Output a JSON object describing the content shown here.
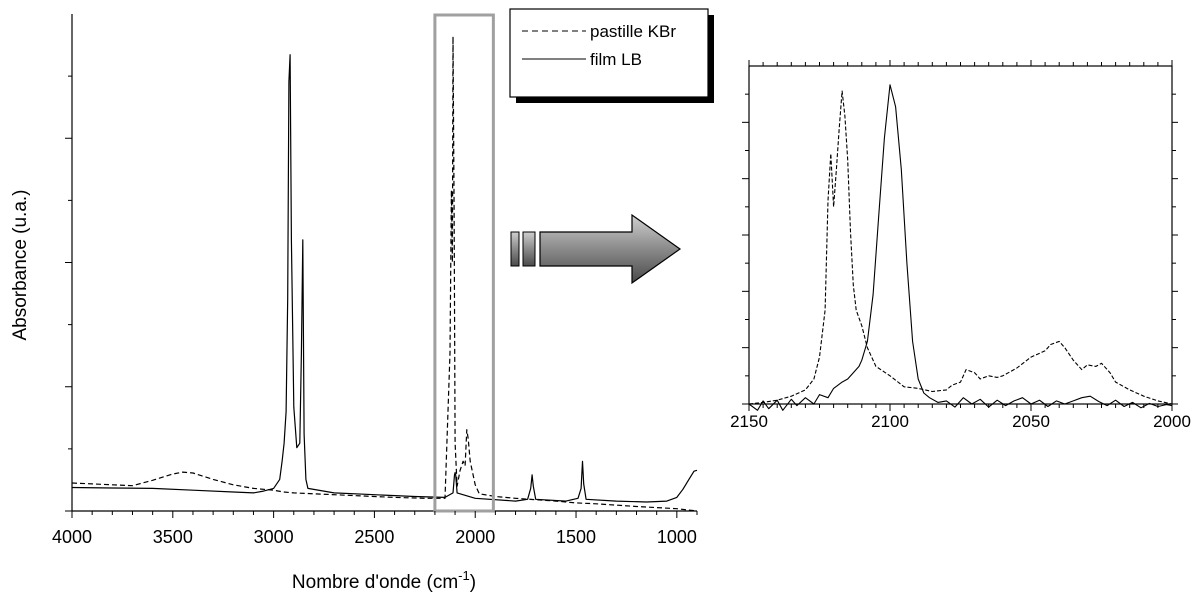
{
  "chart_data": [
    {
      "type": "line",
      "xlabel": "Nombre d'onde (cm",
      "xlabel_sup": "-1",
      "xlabel_end": ")",
      "ylabel": "Absorbance (u.a.)",
      "xlim": [
        4000,
        900
      ],
      "x_reversed": true,
      "ylim": [
        -0.05,
        1.05
      ],
      "x_ticks": [
        4000,
        3500,
        3000,
        2500,
        2000,
        1500,
        1000
      ],
      "y_tick_labels": false,
      "highlight_box": {
        "x_range": [
          2200,
          1910
        ],
        "color": "#a0a0a0"
      },
      "legend": {
        "placement": "top-right",
        "entries": [
          {
            "label": "pastille KBr",
            "style": "dashed"
          },
          {
            "label": "film LB",
            "style": "solid"
          }
        ]
      },
      "series": [
        {
          "name": "pastille KBr",
          "style": "dashed",
          "points": [
            [
              4000,
              0.012
            ],
            [
              3900,
              0.01
            ],
            [
              3800,
              0.008
            ],
            [
              3700,
              0.006
            ],
            [
              3600,
              0.018
            ],
            [
              3500,
              0.032
            ],
            [
              3450,
              0.036
            ],
            [
              3400,
              0.034
            ],
            [
              3300,
              0.02
            ],
            [
              3200,
              0.008
            ],
            [
              3100,
              0.0
            ],
            [
              3000,
              -0.004
            ],
            [
              2950,
              -0.008
            ],
            [
              2900,
              -0.01
            ],
            [
              2800,
              -0.012
            ],
            [
              2600,
              -0.016
            ],
            [
              2400,
              -0.02
            ],
            [
              2250,
              -0.022
            ],
            [
              2150,
              -0.022
            ],
            [
              2125,
              0.3
            ],
            [
              2118,
              0.66
            ],
            [
              2113,
              0.5
            ],
            [
              2110,
              1.0
            ],
            [
              2105,
              0.62
            ],
            [
              2100,
              0.1
            ],
            [
              2090,
              0.005
            ],
            [
              2075,
              0.04
            ],
            [
              2060,
              0.06
            ],
            [
              2050,
              0.05
            ],
            [
              2042,
              0.13
            ],
            [
              2035,
              0.11
            ],
            [
              2025,
              0.06
            ],
            [
              2000,
              0.008
            ],
            [
              1980,
              -0.012
            ],
            [
              1900,
              -0.018
            ],
            [
              1800,
              -0.022
            ],
            [
              1600,
              -0.028
            ],
            [
              1500,
              -0.032
            ],
            [
              1400,
              -0.034
            ],
            [
              1200,
              -0.04
            ],
            [
              1000,
              -0.045
            ],
            [
              900,
              -0.05
            ]
          ]
        },
        {
          "name": "film LB",
          "style": "solid",
          "points": [
            [
              4000,
              0.002
            ],
            [
              3800,
              0.001
            ],
            [
              3600,
              0.0
            ],
            [
              3400,
              -0.004
            ],
            [
              3200,
              -0.008
            ],
            [
              3100,
              -0.01
            ],
            [
              3050,
              -0.006
            ],
            [
              3000,
              0.0
            ],
            [
              2970,
              0.02
            ],
            [
              2958,
              0.06
            ],
            [
              2948,
              0.1
            ],
            [
              2938,
              0.17
            ],
            [
              2930,
              0.42
            ],
            [
              2924,
              0.9
            ],
            [
              2918,
              0.96
            ],
            [
              2912,
              0.55
            ],
            [
              2900,
              0.18
            ],
            [
              2885,
              0.09
            ],
            [
              2870,
              0.1
            ],
            [
              2862,
              0.3
            ],
            [
              2855,
              0.55
            ],
            [
              2849,
              0.12
            ],
            [
              2840,
              0.02
            ],
            [
              2830,
              0.0
            ],
            [
              2700,
              -0.01
            ],
            [
              2500,
              -0.014
            ],
            [
              2300,
              -0.018
            ],
            [
              2150,
              -0.02
            ],
            [
              2110,
              -0.01
            ],
            [
              2103,
              0.03
            ],
            [
              2100,
              0.035
            ],
            [
              2097,
              0.03
            ],
            [
              2090,
              -0.01
            ],
            [
              2000,
              -0.022
            ],
            [
              1800,
              -0.028
            ],
            [
              1740,
              -0.024
            ],
            [
              1725,
              0.0
            ],
            [
              1718,
              0.03
            ],
            [
              1712,
              0.005
            ],
            [
              1700,
              -0.024
            ],
            [
              1550,
              -0.028
            ],
            [
              1490,
              -0.022
            ],
            [
              1475,
              0.0
            ],
            [
              1468,
              0.06
            ],
            [
              1462,
              0.01
            ],
            [
              1450,
              -0.024
            ],
            [
              1300,
              -0.028
            ],
            [
              1150,
              -0.03
            ],
            [
              1050,
              -0.028
            ],
            [
              1000,
              -0.02
            ],
            [
              970,
              -0.002
            ],
            [
              940,
              0.02
            ],
            [
              915,
              0.038
            ],
            [
              900,
              0.04
            ]
          ]
        }
      ]
    },
    {
      "type": "line",
      "xlim": [
        2150,
        2000
      ],
      "x_reversed": true,
      "ylim": [
        0,
        1.08
      ],
      "x_ticks": [
        2150,
        2100,
        2050,
        2000
      ],
      "y_tick_labels": false,
      "series": [
        {
          "name": "pastille KBr",
          "style": "dashed",
          "points": [
            [
              2150,
              0.0
            ],
            [
              2145,
              0.005
            ],
            [
              2140,
              0.012
            ],
            [
              2135,
              0.025
            ],
            [
              2130,
              0.045
            ],
            [
              2127,
              0.08
            ],
            [
              2125,
              0.15
            ],
            [
              2123,
              0.3
            ],
            [
              2122,
              0.65
            ],
            [
              2121,
              0.8
            ],
            [
              2120,
              0.63
            ],
            [
              2119,
              0.75
            ],
            [
              2118,
              0.88
            ],
            [
              2117,
              1.0
            ],
            [
              2116,
              0.92
            ],
            [
              2115,
              0.78
            ],
            [
              2114,
              0.55
            ],
            [
              2113,
              0.38
            ],
            [
              2112,
              0.3
            ],
            [
              2110,
              0.25
            ],
            [
              2108,
              0.18
            ],
            [
              2105,
              0.12
            ],
            [
              2100,
              0.09
            ],
            [
              2095,
              0.055
            ],
            [
              2090,
              0.05
            ],
            [
              2085,
              0.04
            ],
            [
              2080,
              0.045
            ],
            [
              2078,
              0.06
            ],
            [
              2075,
              0.07
            ],
            [
              2073,
              0.11
            ],
            [
              2070,
              0.1
            ],
            [
              2068,
              0.08
            ],
            [
              2065,
              0.09
            ],
            [
              2062,
              0.085
            ],
            [
              2060,
              0.09
            ],
            [
              2058,
              0.1
            ],
            [
              2055,
              0.115
            ],
            [
              2050,
              0.15
            ],
            [
              2045,
              0.17
            ],
            [
              2043,
              0.19
            ],
            [
              2040,
              0.2
            ],
            [
              2038,
              0.18
            ],
            [
              2035,
              0.14
            ],
            [
              2032,
              0.11
            ],
            [
              2030,
              0.125
            ],
            [
              2027,
              0.12
            ],
            [
              2025,
              0.13
            ],
            [
              2022,
              0.1
            ],
            [
              2020,
              0.07
            ],
            [
              2015,
              0.045
            ],
            [
              2010,
              0.025
            ],
            [
              2005,
              0.01
            ],
            [
              2000,
              0.0
            ]
          ]
        },
        {
          "name": "film LB",
          "style": "solid",
          "points": [
            [
              2150,
              0.0
            ],
            [
              2147,
              -0.02
            ],
            [
              2145,
              0.01
            ],
            [
              2143,
              -0.015
            ],
            [
              2140,
              0.012
            ],
            [
              2138,
              -0.02
            ],
            [
              2135,
              0.015
            ],
            [
              2133,
              -0.005
            ],
            [
              2130,
              0.02
            ],
            [
              2127,
              0.0
            ],
            [
              2125,
              0.03
            ],
            [
              2122,
              0.02
            ],
            [
              2120,
              0.05
            ],
            [
              2117,
              0.07
            ],
            [
              2115,
              0.08
            ],
            [
              2113,
              0.1
            ],
            [
              2111,
              0.12
            ],
            [
              2110,
              0.14
            ],
            [
              2108,
              0.2
            ],
            [
              2106,
              0.35
            ],
            [
              2104,
              0.6
            ],
            [
              2102,
              0.85
            ],
            [
              2100,
              1.02
            ],
            [
              2098,
              0.95
            ],
            [
              2096,
              0.75
            ],
            [
              2094,
              0.45
            ],
            [
              2092,
              0.2
            ],
            [
              2090,
              0.08
            ],
            [
              2088,
              0.035
            ],
            [
              2086,
              0.02
            ],
            [
              2083,
              0.005
            ],
            [
              2080,
              0.01
            ],
            [
              2077,
              -0.01
            ],
            [
              2074,
              0.02
            ],
            [
              2071,
              0.0
            ],
            [
              2068,
              0.015
            ],
            [
              2065,
              -0.01
            ],
            [
              2062,
              0.012
            ],
            [
              2059,
              -0.005
            ],
            [
              2056,
              0.01
            ],
            [
              2053,
              0.02
            ],
            [
              2050,
              0.0
            ],
            [
              2047,
              0.012
            ],
            [
              2044,
              -0.008
            ],
            [
              2041,
              0.01
            ],
            [
              2038,
              0.0
            ],
            [
              2035,
              0.01
            ],
            [
              2032,
              0.02
            ],
            [
              2029,
              0.025
            ],
            [
              2026,
              0.008
            ],
            [
              2023,
              -0.005
            ],
            [
              2020,
              0.012
            ],
            [
              2017,
              -0.008
            ],
            [
              2014,
              0.005
            ],
            [
              2011,
              -0.012
            ],
            [
              2008,
              0.002
            ],
            [
              2005,
              -0.008
            ],
            [
              2002,
              -0.002
            ],
            [
              2000,
              -0.005
            ]
          ]
        }
      ]
    }
  ]
}
